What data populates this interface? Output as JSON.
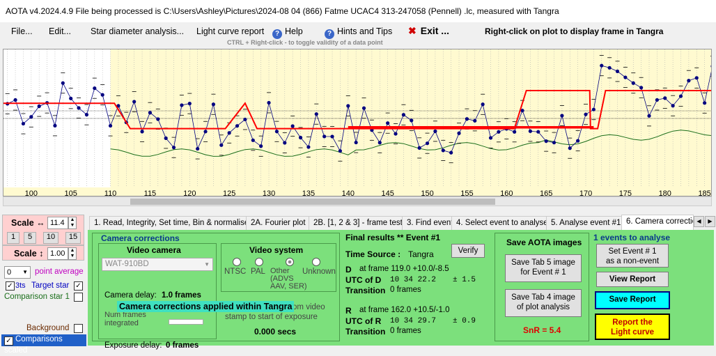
{
  "window": {
    "title": "AOTA v4.2024.4.9    File being processed is C:\\Users\\Ashley\\Pictures\\2024-08 04 (866) Fatme UCAC4 313-247058 (Pennell) .lc, measured with Tangra"
  },
  "menu": {
    "file": "File...",
    "edit": "Edit...",
    "star_diameter": "Star diameter analysis...",
    "light_curve": "Light curve report",
    "help": "Help",
    "hints": "Hints and Tips",
    "exit": "Exit ...",
    "exit_icon": "x-icon",
    "help_icon": "question-icon",
    "right_click_hint": "Right-click on plot to display frame in Tangra",
    "ctrl_hint": "CTRL + Right-click  -  to toggle validity of a data point"
  },
  "plot": {
    "x_tick_labels": [
      "100",
      "105",
      "110",
      "115",
      "120",
      "125",
      "130",
      "135",
      "140",
      "145",
      "150",
      "155",
      "160",
      "165",
      "170",
      "175",
      "180",
      "185"
    ],
    "x_range": [
      96.5,
      186
    ],
    "y_range": [
      0,
      1
    ],
    "data_color": "#000080",
    "model_color": "#ff0000",
    "comparison_color": "#1a6e1a",
    "highlight_color": "#fffad0"
  },
  "left_panel": {
    "scale_h_label": "Scale ↔",
    "scale_h_value": "11.4",
    "scale_buttons": [
      "1",
      "5",
      "10",
      "15"
    ],
    "scale_v_label": "Scale ↕",
    "scale_v_value": "1.00",
    "point_average_value": "0",
    "point_average_label": "point average",
    "target_star_prefix": "3ts",
    "target_star_label": "Target star",
    "comparison_star_label": "Comparison star 1",
    "background_label": "Background",
    "comparisons_scaled_label": "Comparisons scaled"
  },
  "tabs": [
    "1.  Read, Integrity, Set time, Bin & normalise",
    "2A. Fourier plot",
    "2B. [1, 2 & 3] - frame test",
    "3. Find events",
    "4. Select event to analyse",
    "5. Analyse event #1",
    "6. Camera correctio"
  ],
  "camera": {
    "title": "Camera corrections",
    "video_camera_title": "Video camera",
    "camera_model": "WAT-910BD",
    "camera_delay_label": "Camera delay:",
    "camera_delay_value": "1.0 frames",
    "frames_integrated_label": "Num frames integrated",
    "exposure_delay_label": "Exposure delay:",
    "exposure_delay_value": "0 frames",
    "video_system_title": "Video system",
    "video_options": [
      "NTSC",
      "PAL",
      "Other\n(ADVS\nAAV, SER)",
      "Unknown"
    ],
    "from_video_text": "from video",
    "stamp_text": "stamp to start of exposure",
    "secs_value": "0.000 secs",
    "tooltip": "Camera corrections applied within Tangra"
  },
  "results": {
    "title": "Final results  **  Event #1",
    "time_source_label": "Time Source :",
    "time_source_value": "Tangra",
    "verify": "Verify",
    "d_label": "D",
    "d_value": "at frame 119.0  +10.0/-8.5",
    "utc_d_label": "UTC of D",
    "utc_d_value": "10 34 22.2",
    "utc_d_err": "± 1.5",
    "transition_label": "Transition",
    "transition_d_value": "0 frames",
    "r_label": "R",
    "r_value": "at frame 162.0  +10.5/-1.0",
    "utc_r_label": "UTC of R",
    "utc_r_value": "10 34 29.7",
    "utc_r_err": "± 0.9",
    "transition_r_value": "0 frames"
  },
  "save_images": {
    "title": "Save AOTA images",
    "save_tab5": "Save Tab 5 image\nfor Event # 1",
    "save_tab4": "Save Tab 4 image\nof plot analysis",
    "snr": "SnR = 5.4"
  },
  "actions": {
    "events_count": "1  events to analyse",
    "set_non_event": "Set Event # 1\nas a non-event",
    "view_report": "View Report",
    "save_report": "Save Report",
    "report_light_curve": "Report the\nLight curve"
  }
}
